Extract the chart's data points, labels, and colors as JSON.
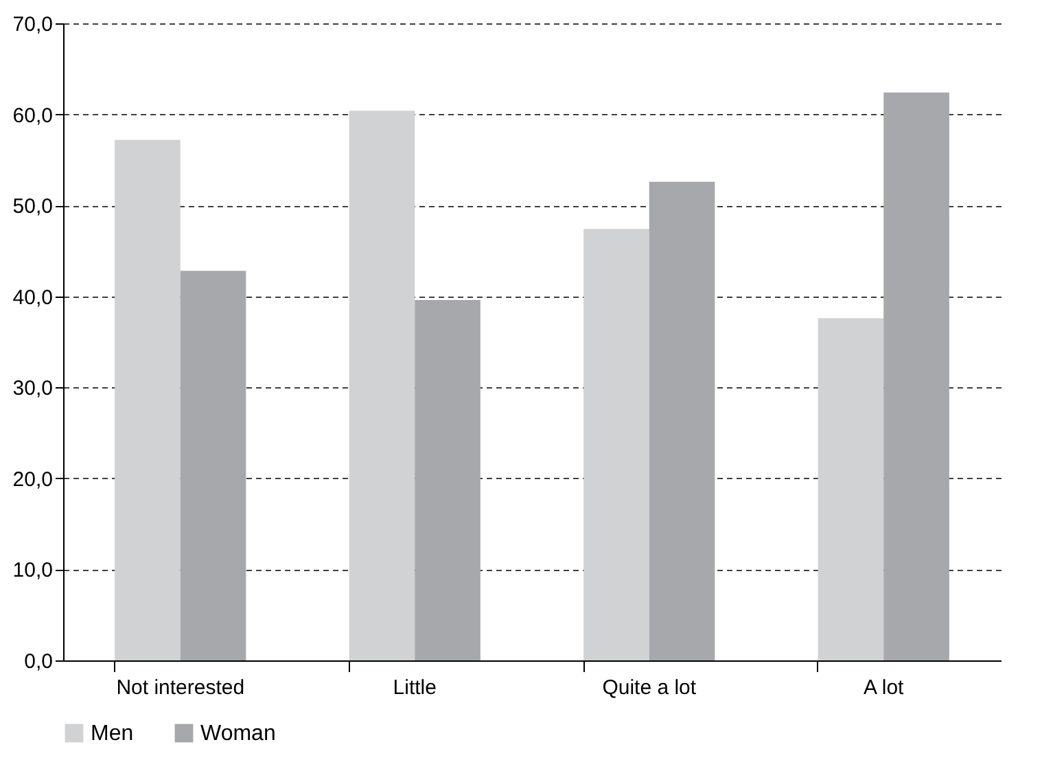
{
  "chart_data": {
    "type": "bar",
    "categories": [
      "Not interested",
      "Little",
      "Quite a lot",
      "A lot"
    ],
    "series": [
      {
        "name": "Men",
        "color": "#d1d2d4",
        "values": [
          57.2,
          60.4,
          47.4,
          37.6
        ]
      },
      {
        "name": "Woman",
        "color": "#a7a8ab",
        "values": [
          42.8,
          39.6,
          52.6,
          62.4
        ]
      }
    ],
    "ylim": [
      0,
      70
    ],
    "yticks": [
      {
        "value": 0,
        "label": "0,0"
      },
      {
        "value": 10,
        "label": "10,0"
      },
      {
        "value": 20,
        "label": "20,0"
      },
      {
        "value": 30,
        "label": "30,0"
      },
      {
        "value": 40,
        "label": "40,0"
      },
      {
        "value": 50,
        "label": "50,0"
      },
      {
        "value": 60,
        "label": "60,0"
      },
      {
        "value": 70,
        "label": "70,0"
      }
    ],
    "grid": "y",
    "legend": "bottom"
  }
}
